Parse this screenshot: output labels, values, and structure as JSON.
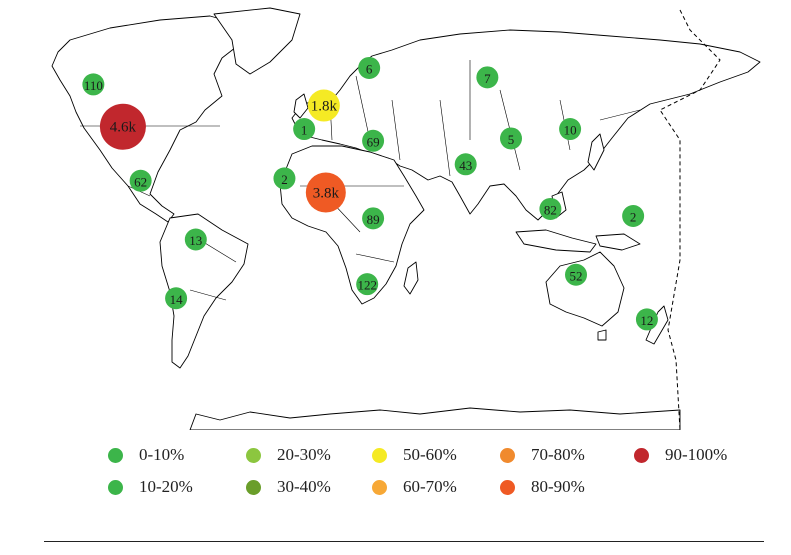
{
  "map": {
    "markers": [
      {
        "label": "110",
        "lon": -112,
        "lat": 56,
        "bucket": "10-20%",
        "r": 11,
        "font": 13
      },
      {
        "label": "4.6k",
        "lon": -97,
        "lat": 38,
        "bucket": "90-100%",
        "r": 23,
        "font": 15
      },
      {
        "label": "62",
        "lon": -88,
        "lat": 15,
        "bucket": "10-20%",
        "r": 11,
        "font": 13
      },
      {
        "label": "13",
        "lon": -60,
        "lat": -10,
        "bucket": "10-20%",
        "r": 11,
        "font": 13
      },
      {
        "label": "14",
        "lon": -70,
        "lat": -35,
        "bucket": "10-20%",
        "r": 11,
        "font": 13
      },
      {
        "label": "1.8k",
        "lon": 5,
        "lat": 47,
        "bucket": "50-60%",
        "r": 16,
        "font": 15
      },
      {
        "label": "1",
        "lon": -5,
        "lat": 37,
        "bucket": "10-20%",
        "r": 11,
        "font": 13
      },
      {
        "label": "2",
        "lon": -15,
        "lat": 16,
        "bucket": "10-20%",
        "r": 11,
        "font": 13
      },
      {
        "label": "3.8k",
        "lon": 6,
        "lat": 10,
        "bucket": "80-90%",
        "r": 20,
        "font": 15
      },
      {
        "label": "6",
        "lon": 28,
        "lat": 63,
        "bucket": "10-20%",
        "r": 11,
        "font": 13
      },
      {
        "label": "69",
        "lon": 30,
        "lat": 32,
        "bucket": "10-20%",
        "r": 11,
        "font": 13
      },
      {
        "label": "89",
        "lon": 30,
        "lat": -1,
        "bucket": "10-20%",
        "r": 11,
        "font": 13
      },
      {
        "label": "122",
        "lon": 27,
        "lat": -29,
        "bucket": "10-20%",
        "r": 11,
        "font": 13
      },
      {
        "label": "7",
        "lon": 88,
        "lat": 59,
        "bucket": "10-20%",
        "r": 11,
        "font": 13
      },
      {
        "label": "5",
        "lon": 100,
        "lat": 33,
        "bucket": "10-20%",
        "r": 11,
        "font": 13
      },
      {
        "label": "43",
        "lon": 77,
        "lat": 22,
        "bucket": "10-20%",
        "r": 11,
        "font": 13
      },
      {
        "label": "10",
        "lon": 130,
        "lat": 37,
        "bucket": "10-20%",
        "r": 11,
        "font": 13
      },
      {
        "label": "82",
        "lon": 120,
        "lat": 3,
        "bucket": "10-20%",
        "r": 11,
        "font": 13
      },
      {
        "label": "52",
        "lon": 133,
        "lat": -25,
        "bucket": "10-20%",
        "r": 11,
        "font": 13
      },
      {
        "label": "2",
        "lon": 162,
        "lat": 0,
        "bucket": "10-20%",
        "r": 11,
        "font": 13
      },
      {
        "label": "12",
        "lon": 169,
        "lat": -44,
        "bucket": "10-20%",
        "r": 11,
        "font": 13
      }
    ]
  },
  "legend": {
    "items": [
      {
        "label": "0-10%",
        "color": "#3cb54a"
      },
      {
        "label": "10-20%",
        "color": "#3cb54a"
      },
      {
        "label": "20-30%",
        "color": "#8cc63f"
      },
      {
        "label": "30-40%",
        "color": "#6a9e2a"
      },
      {
        "label": "50-60%",
        "color": "#f5ea24"
      },
      {
        "label": "60-70%",
        "color": "#f7a836"
      },
      {
        "label": "70-80%",
        "color": "#f08a2e"
      },
      {
        "label": "80-90%",
        "color": "#ef5a24"
      },
      {
        "label": "90-100%",
        "color": "#c1272d"
      }
    ]
  }
}
